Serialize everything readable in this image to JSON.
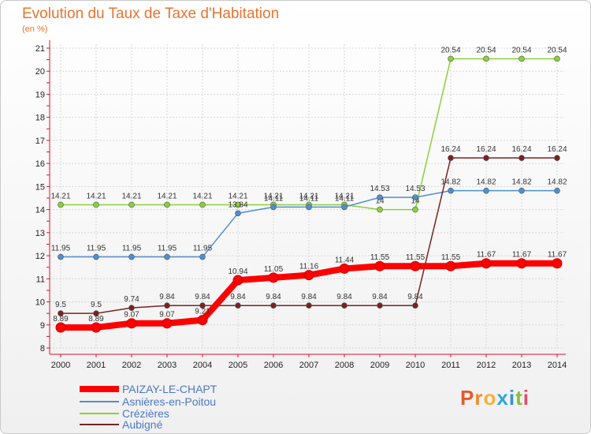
{
  "title": "Evolution du Taux de Taxe d'Habitation",
  "subtitle": "(en %)",
  "logo": {
    "text": "Proxiti",
    "colors": [
      "#e35b2a",
      "#f08a2b",
      "#f2b33a",
      "#2ea7d9",
      "#3a8ed1",
      "#86bf3b",
      "#e84a6a"
    ]
  },
  "chart_data": {
    "type": "line",
    "x": [
      "2000",
      "2001",
      "2002",
      "2003",
      "2004",
      "2005",
      "2006",
      "2007",
      "2008",
      "2009",
      "2010",
      "2011",
      "2012",
      "2013",
      "2014"
    ],
    "ylim": [
      8,
      21
    ],
    "yticks": [
      8,
      9,
      10,
      11,
      12,
      13,
      14,
      15,
      16,
      17,
      18,
      19,
      20,
      21
    ],
    "grid": true,
    "legend_position": "bottom-left",
    "series": [
      {
        "name": "PAIZAY-LE-CHAPT",
        "color": "#ff0000",
        "values": [
          8.89,
          8.89,
          9.07,
          9.07,
          9.21,
          10.94,
          11.05,
          11.16,
          11.44,
          11.55,
          11.55,
          11.55,
          11.67,
          11.67,
          11.67
        ]
      },
      {
        "name": "Asnières-en-Poitou",
        "color": "#4d8fd1",
        "values": [
          11.95,
          11.95,
          11.95,
          11.95,
          11.95,
          13.84,
          14.11,
          14.11,
          14.11,
          14.53,
          14.53,
          14.82,
          14.82,
          14.82,
          14.82
        ]
      },
      {
        "name": "Crézières",
        "color": "#8ccf3d",
        "values": [
          14.21,
          14.21,
          14.21,
          14.21,
          14.21,
          14.21,
          14.21,
          14.21,
          14.21,
          14,
          14,
          20.54,
          20.54,
          20.54,
          20.54
        ]
      },
      {
        "name": "Aubigné",
        "color": "#7a2222",
        "values": [
          9.5,
          9.5,
          9.74,
          9.84,
          9.84,
          9.84,
          9.84,
          9.84,
          9.84,
          9.84,
          9.84,
          16.24,
          16.24,
          16.24,
          16.24
        ]
      }
    ]
  }
}
